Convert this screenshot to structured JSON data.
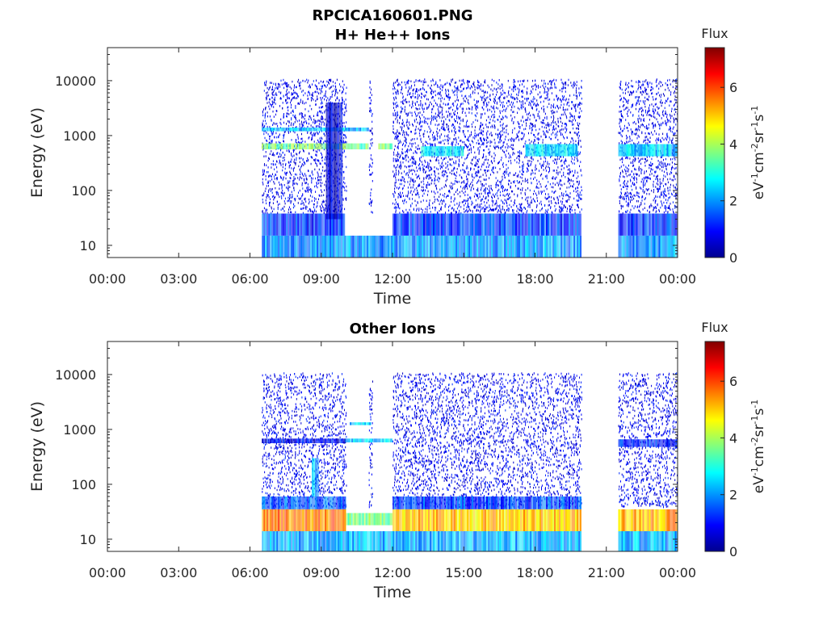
{
  "figure": {
    "title": "RPCICA160601.PNG"
  },
  "chart_data": [
    {
      "type": "heatmap",
      "title": "H+ He++ Ions",
      "xlabel": "Time",
      "ylabel": "Energy (eV)",
      "x_ticks": [
        "00:00",
        "03:00",
        "06:00",
        "09:00",
        "12:00",
        "15:00",
        "18:00",
        "21:00",
        "00:00"
      ],
      "xlim_hours": [
        0,
        24
      ],
      "y_scale": "log",
      "y_ticks": [
        "10",
        "100",
        "1000",
        "10000"
      ],
      "ylim": [
        6,
        40000
      ],
      "colorbar": {
        "title": "Flux",
        "label": "eV-1cm-2sr-1s-1",
        "ticks": [
          "0",
          "2",
          "4",
          "6"
        ],
        "range": [
          0,
          7.4
        ],
        "colormap": "jet"
      },
      "data_intervals_hours": [
        [
          6.5,
          10.05
        ],
        [
          11.0,
          11.15
        ],
        [
          12.0,
          19.95
        ],
        [
          21.5,
          24.0
        ]
      ],
      "bands": [
        {
          "t": [
            6.5,
            10.05
          ],
          "e": [
            560,
            720
          ],
          "flux": 3.6
        },
        {
          "t": [
            10.05,
            11.0
          ],
          "e": [
            560,
            720
          ],
          "flux": 3.6
        },
        {
          "t": [
            11.4,
            12.0
          ],
          "e": [
            560,
            720
          ],
          "flux": 3.6
        },
        {
          "t": [
            6.5,
            10.0
          ],
          "e": [
            1200,
            1400
          ],
          "flux": 2.4
        },
        {
          "t": [
            10.0,
            11.0
          ],
          "e": [
            1200,
            1400
          ],
          "flux": 2.2
        },
        {
          "t": [
            13.2,
            15.0
          ],
          "e": [
            420,
            640
          ],
          "flux": 2.6
        },
        {
          "t": [
            17.6,
            19.8
          ],
          "e": [
            420,
            700
          ],
          "flux": 2.6
        },
        {
          "t": [
            21.5,
            24.0
          ],
          "e": [
            420,
            700
          ],
          "flux": 2.4
        },
        {
          "t": [
            6.5,
            10.0
          ],
          "e": [
            15,
            38
          ],
          "flux": 1.3
        },
        {
          "t": [
            12.0,
            19.95
          ],
          "e": [
            15,
            38
          ],
          "flux": 1.3
        },
        {
          "t": [
            21.5,
            24.0
          ],
          "e": [
            15,
            38
          ],
          "flux": 1.3
        },
        {
          "t": [
            6.5,
            19.95
          ],
          "e": [
            6,
            15
          ],
          "flux": 2.0
        },
        {
          "t": [
            21.5,
            24.0
          ],
          "e": [
            6,
            15
          ],
          "flux": 2.0
        },
        {
          "t": [
            9.2,
            9.9
          ],
          "e": [
            30,
            4000
          ],
          "flux": 0.6
        }
      ]
    },
    {
      "type": "heatmap",
      "title": "Other Ions",
      "xlabel": "Time",
      "ylabel": "Energy (eV)",
      "x_ticks": [
        "00:00",
        "03:00",
        "06:00",
        "09:00",
        "12:00",
        "15:00",
        "18:00",
        "21:00",
        "00:00"
      ],
      "xlim_hours": [
        0,
        24
      ],
      "y_scale": "log",
      "y_ticks": [
        "10",
        "100",
        "1000",
        "10000"
      ],
      "ylim": [
        6,
        40000
      ],
      "colorbar": {
        "title": "Flux",
        "label": "eV-1cm-2sr-1s-1",
        "ticks": [
          "0",
          "2",
          "4",
          "6"
        ],
        "range": [
          0,
          7.4
        ],
        "colormap": "jet"
      },
      "data_intervals_hours": [
        [
          6.5,
          10.05
        ],
        [
          11.0,
          11.15
        ],
        [
          12.0,
          19.95
        ],
        [
          21.5,
          24.0
        ]
      ],
      "bands": [
        {
          "t": [
            6.5,
            10.05
          ],
          "e": [
            560,
            680
          ],
          "flux": 0.9
        },
        {
          "t": [
            10.0,
            12.0
          ],
          "e": [
            580,
            680
          ],
          "flux": 2.4
        },
        {
          "t": [
            10.2,
            11.1
          ],
          "e": [
            1200,
            1350
          ],
          "flux": 2.3
        },
        {
          "t": [
            21.5,
            24.0
          ],
          "e": [
            480,
            660
          ],
          "flux": 1.2
        },
        {
          "t": [
            6.5,
            10.05
          ],
          "e": [
            35,
            60
          ],
          "flux": 1.5
        },
        {
          "t": [
            12.0,
            19.95
          ],
          "e": [
            35,
            60
          ],
          "flux": 1.4
        },
        {
          "t": [
            6.5,
            10.05
          ],
          "e": [
            14,
            35
          ],
          "flux": 5.6
        },
        {
          "t": [
            10.05,
            12.0
          ],
          "e": [
            18,
            30
          ],
          "flux": 3.7
        },
        {
          "t": [
            12.0,
            19.95
          ],
          "e": [
            14,
            35
          ],
          "flux": 5.0
        },
        {
          "t": [
            21.5,
            24.0
          ],
          "e": [
            14,
            35
          ],
          "flux": 5.2
        },
        {
          "t": [
            6.5,
            19.95
          ],
          "e": [
            6,
            14
          ],
          "flux": 2.2
        },
        {
          "t": [
            21.5,
            24.0
          ],
          "e": [
            6,
            14
          ],
          "flux": 2.2
        },
        {
          "t": [
            8.6,
            8.9
          ],
          "e": [
            60,
            300
          ],
          "flux": 2.2
        }
      ]
    }
  ]
}
